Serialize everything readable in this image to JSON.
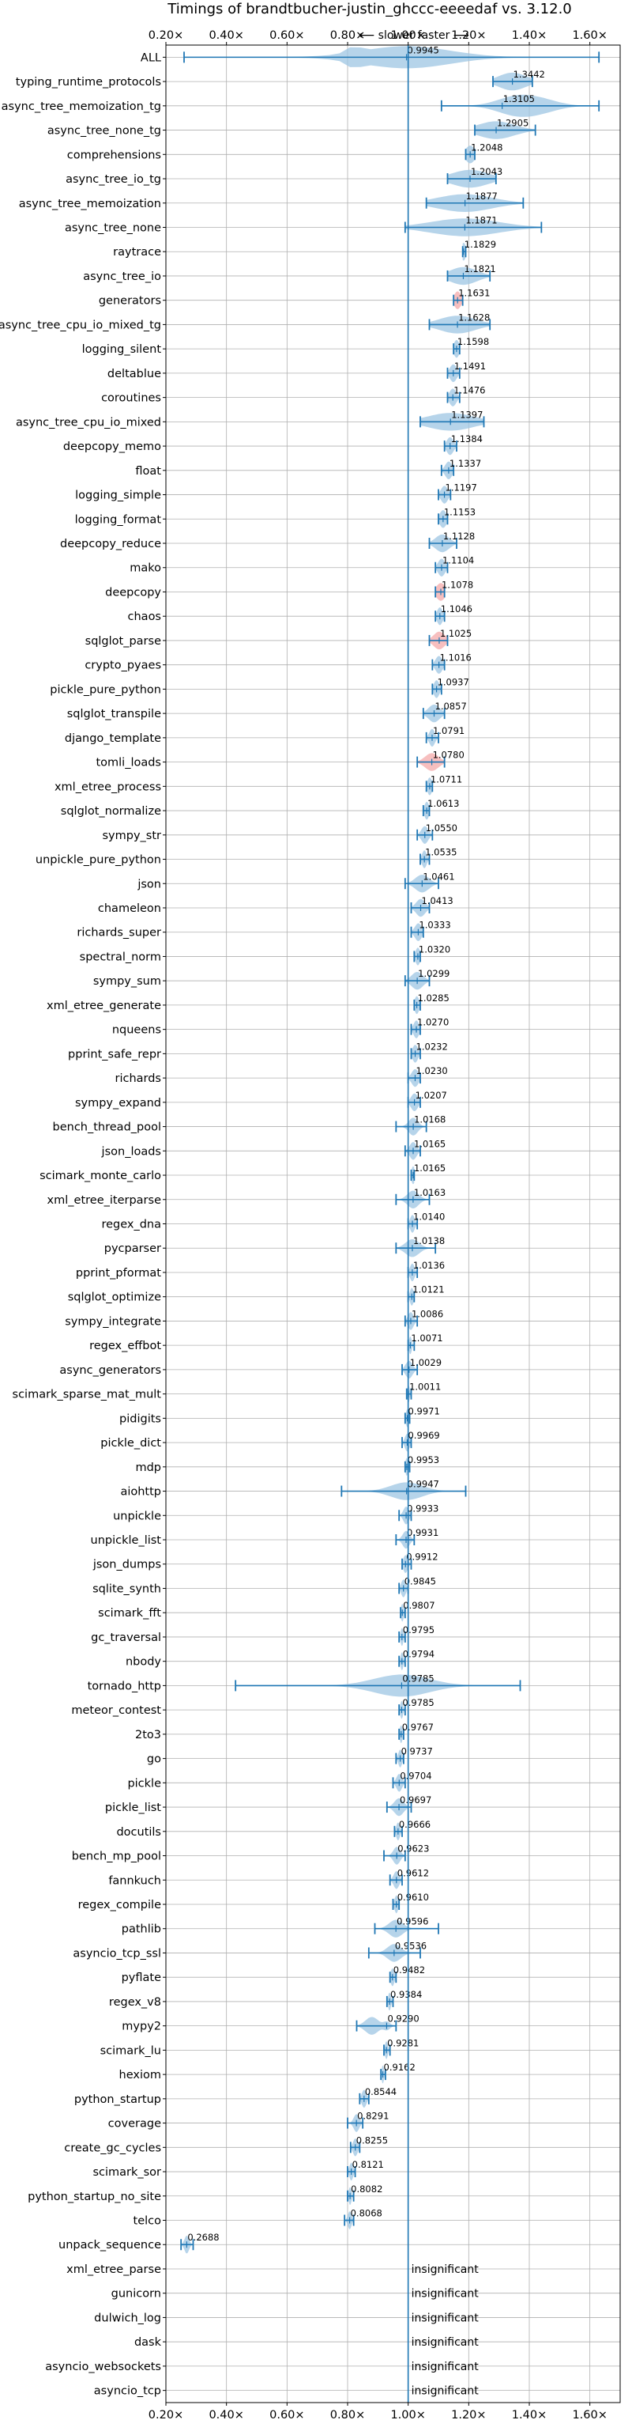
{
  "chart_data": {
    "type": "violin",
    "title": "Timings of brandtbucher-justin_ghccc-eeeedaf vs. 3.12.0",
    "subtitle": "⟵ slower   faster ⟶",
    "xlim": [
      0.2,
      1.7
    ],
    "xticks": [
      "0.20×",
      "0.40×",
      "0.60×",
      "0.80×",
      "1.00×",
      "1.20×",
      "1.40×",
      "1.60×"
    ],
    "xtick_values": [
      0.2,
      0.4,
      0.6,
      0.8,
      1.0,
      1.2,
      1.4,
      1.6
    ],
    "reference_line": 1.0,
    "insignificant_label": "insignificant",
    "colors": {
      "violin": "#9ec5e3",
      "violin_highlight": "#f4a9a9",
      "line": "#1f77b4",
      "grid": "#b0b0b0"
    },
    "benchmarks": [
      {
        "name": "ALL",
        "label": "0.9945",
        "center": 0.9945,
        "min": 0.26,
        "max": 1.63,
        "spread": 0.22,
        "shape": "all"
      },
      {
        "name": "typing_runtime_protocols",
        "label": "1.3442",
        "center": 1.3442,
        "min": 1.28,
        "max": 1.41,
        "spread": 0.06
      },
      {
        "name": "async_tree_memoization_tg",
        "label": "1.3105",
        "center": 1.3105,
        "min": 1.11,
        "max": 1.63,
        "spread": 0.2,
        "shape": "skew"
      },
      {
        "name": "async_tree_none_tg",
        "label": "1.2905",
        "center": 1.2905,
        "min": 1.22,
        "max": 1.42,
        "spread": 0.08
      },
      {
        "name": "comprehensions",
        "label": "1.2048",
        "center": 1.2048,
        "min": 1.19,
        "max": 1.22,
        "spread": 0.02
      },
      {
        "name": "async_tree_io_tg",
        "label": "1.2043",
        "center": 1.2043,
        "min": 1.13,
        "max": 1.29,
        "spread": 0.08
      },
      {
        "name": "async_tree_memoization",
        "label": "1.1877",
        "center": 1.1877,
        "min": 1.06,
        "max": 1.38,
        "spread": 0.12
      },
      {
        "name": "async_tree_none",
        "label": "1.1871",
        "center": 1.1871,
        "min": 0.99,
        "max": 1.44,
        "spread": 0.15
      },
      {
        "name": "raytrace",
        "label": "1.1829",
        "center": 1.1829,
        "min": 1.18,
        "max": 1.19,
        "spread": 0.01
      },
      {
        "name": "async_tree_io",
        "label": "1.1821",
        "center": 1.1821,
        "min": 1.13,
        "max": 1.27,
        "spread": 0.06
      },
      {
        "name": "generators",
        "label": "1.1631",
        "center": 1.1631,
        "min": 1.15,
        "max": 1.18,
        "spread": 0.015,
        "highlight": true
      },
      {
        "name": "async_tree_cpu_io_mixed_tg",
        "label": "1.1628",
        "center": 1.1628,
        "min": 1.07,
        "max": 1.27,
        "spread": 0.08
      },
      {
        "name": "logging_silent",
        "label": "1.1598",
        "center": 1.1598,
        "min": 1.15,
        "max": 1.17,
        "spread": 0.012
      },
      {
        "name": "deltablue",
        "label": "1.1491",
        "center": 1.1491,
        "min": 1.13,
        "max": 1.17,
        "spread": 0.015
      },
      {
        "name": "coroutines",
        "label": "1.1476",
        "center": 1.1476,
        "min": 1.13,
        "max": 1.17,
        "spread": 0.015
      },
      {
        "name": "async_tree_cpu_io_mixed",
        "label": "1.1397",
        "center": 1.1397,
        "min": 1.04,
        "max": 1.25,
        "spread": 0.1
      },
      {
        "name": "deepcopy_memo",
        "label": "1.1384",
        "center": 1.1384,
        "min": 1.12,
        "max": 1.16,
        "spread": 0.015
      },
      {
        "name": "float",
        "label": "1.1337",
        "center": 1.1337,
        "min": 1.11,
        "max": 1.15,
        "spread": 0.015
      },
      {
        "name": "logging_simple",
        "label": "1.1197",
        "center": 1.1197,
        "min": 1.1,
        "max": 1.14,
        "spread": 0.015
      },
      {
        "name": "logging_format",
        "label": "1.1153",
        "center": 1.1153,
        "min": 1.1,
        "max": 1.13,
        "spread": 0.015
      },
      {
        "name": "deepcopy_reduce",
        "label": "1.1128",
        "center": 1.1128,
        "min": 1.07,
        "max": 1.16,
        "spread": 0.03
      },
      {
        "name": "mako",
        "label": "1.1104",
        "center": 1.1104,
        "min": 1.09,
        "max": 1.13,
        "spread": 0.015
      },
      {
        "name": "deepcopy",
        "label": "1.1078",
        "center": 1.1078,
        "min": 1.09,
        "max": 1.12,
        "spread": 0.02,
        "highlight": true
      },
      {
        "name": "chaos",
        "label": "1.1046",
        "center": 1.1046,
        "min": 1.09,
        "max": 1.12,
        "spread": 0.012
      },
      {
        "name": "sqlglot_parse",
        "label": "1.1025",
        "center": 1.1025,
        "min": 1.07,
        "max": 1.13,
        "spread": 0.025,
        "highlight": true
      },
      {
        "name": "crypto_pyaes",
        "label": "1.1016",
        "center": 1.1016,
        "min": 1.08,
        "max": 1.12,
        "spread": 0.015
      },
      {
        "name": "pickle_pure_python",
        "label": "1.0937",
        "center": 1.0937,
        "min": 1.08,
        "max": 1.11,
        "spread": 0.012
      },
      {
        "name": "sqlglot_transpile",
        "label": "1.0857",
        "center": 1.0857,
        "min": 1.05,
        "max": 1.12,
        "spread": 0.025
      },
      {
        "name": "django_template",
        "label": "1.0791",
        "center": 1.0791,
        "min": 1.06,
        "max": 1.1,
        "spread": 0.012
      },
      {
        "name": "tomli_loads",
        "label": "1.0780",
        "center": 1.078,
        "min": 1.03,
        "max": 1.12,
        "spread": 0.03,
        "highlight": true
      },
      {
        "name": "xml_etree_process",
        "label": "1.0711",
        "center": 1.0711,
        "min": 1.06,
        "max": 1.08,
        "spread": 0.01
      },
      {
        "name": "sqlglot_normalize",
        "label": "1.0613",
        "center": 1.0613,
        "min": 1.05,
        "max": 1.07,
        "spread": 0.01
      },
      {
        "name": "sympy_str",
        "label": "1.0550",
        "center": 1.055,
        "min": 1.03,
        "max": 1.08,
        "spread": 0.015
      },
      {
        "name": "unpickle_pure_python",
        "label": "1.0535",
        "center": 1.0535,
        "min": 1.04,
        "max": 1.07,
        "spread": 0.01
      },
      {
        "name": "json",
        "label": "1.0461",
        "center": 1.0461,
        "min": 0.99,
        "max": 1.1,
        "spread": 0.03
      },
      {
        "name": "chameleon",
        "label": "1.0413",
        "center": 1.0413,
        "min": 1.01,
        "max": 1.07,
        "spread": 0.02
      },
      {
        "name": "richards_super",
        "label": "1.0333",
        "center": 1.0333,
        "min": 1.01,
        "max": 1.05,
        "spread": 0.015
      },
      {
        "name": "spectral_norm",
        "label": "1.0320",
        "center": 1.032,
        "min": 1.02,
        "max": 1.04,
        "spread": 0.01
      },
      {
        "name": "sympy_sum",
        "label": "1.0299",
        "center": 1.0299,
        "min": 0.99,
        "max": 1.07,
        "spread": 0.025
      },
      {
        "name": "xml_etree_generate",
        "label": "1.0285",
        "center": 1.0285,
        "min": 1.02,
        "max": 1.04,
        "spread": 0.01
      },
      {
        "name": "nqueens",
        "label": "1.0270",
        "center": 1.027,
        "min": 1.01,
        "max": 1.04,
        "spread": 0.012
      },
      {
        "name": "pprint_safe_repr",
        "label": "1.0232",
        "center": 1.0232,
        "min": 1.01,
        "max": 1.04,
        "spread": 0.012
      },
      {
        "name": "richards",
        "label": "1.0230",
        "center": 1.023,
        "min": 1.0,
        "max": 1.04,
        "spread": 0.015
      },
      {
        "name": "sympy_expand",
        "label": "1.0207",
        "center": 1.0207,
        "min": 1.0,
        "max": 1.04,
        "spread": 0.015
      },
      {
        "name": "bench_thread_pool",
        "label": "1.0168",
        "center": 1.0168,
        "min": 0.96,
        "max": 1.06,
        "spread": 0.02
      },
      {
        "name": "json_loads",
        "label": "1.0165",
        "center": 1.0165,
        "min": 0.99,
        "max": 1.04,
        "spread": 0.015
      },
      {
        "name": "scimark_monte_carlo",
        "label": "1.0165",
        "center": 1.0165,
        "min": 1.01,
        "max": 1.02,
        "spread": 0.008
      },
      {
        "name": "xml_etree_iterparse",
        "label": "1.0163",
        "center": 1.0163,
        "min": 0.96,
        "max": 1.07,
        "spread": 0.025
      },
      {
        "name": "regex_dna",
        "label": "1.0140",
        "center": 1.014,
        "min": 1.0,
        "max": 1.03,
        "spread": 0.01
      },
      {
        "name": "pycparser",
        "label": "1.0138",
        "center": 1.0138,
        "min": 0.96,
        "max": 1.09,
        "spread": 0.03
      },
      {
        "name": "pprint_pformat",
        "label": "1.0136",
        "center": 1.0136,
        "min": 1.0,
        "max": 1.03,
        "spread": 0.01
      },
      {
        "name": "sqlglot_optimize",
        "label": "1.0121",
        "center": 1.0121,
        "min": 1.0,
        "max": 1.02,
        "spread": 0.008
      },
      {
        "name": "sympy_integrate",
        "label": "1.0086",
        "center": 1.0086,
        "min": 0.99,
        "max": 1.03,
        "spread": 0.012
      },
      {
        "name": "regex_effbot",
        "label": "1.0071",
        "center": 1.0071,
        "min": 1.0,
        "max": 1.02,
        "spread": 0.006
      },
      {
        "name": "async_generators",
        "label": "1.0029",
        "center": 1.0029,
        "min": 0.98,
        "max": 1.03,
        "spread": 0.015
      },
      {
        "name": "scimark_sparse_mat_mult",
        "label": "1.0011",
        "center": 1.0011,
        "min": 0.995,
        "max": 1.01,
        "spread": 0.005
      },
      {
        "name": "pidigits",
        "label": "0.9971",
        "center": 0.9971,
        "min": 0.99,
        "max": 1.005,
        "spread": 0.006
      },
      {
        "name": "pickle_dict",
        "label": "0.9969",
        "center": 0.9969,
        "min": 0.98,
        "max": 1.01,
        "spread": 0.01
      },
      {
        "name": "mdp",
        "label": "0.9953",
        "center": 0.9953,
        "min": 0.99,
        "max": 1.005,
        "spread": 0.006
      },
      {
        "name": "aiohttp",
        "label": "0.9947",
        "center": 0.9947,
        "min": 0.78,
        "max": 1.19,
        "spread": 0.07
      },
      {
        "name": "unpickle",
        "label": "0.9933",
        "center": 0.9933,
        "min": 0.97,
        "max": 1.01,
        "spread": 0.012
      },
      {
        "name": "unpickle_list",
        "label": "0.9931",
        "center": 0.9931,
        "min": 0.96,
        "max": 1.02,
        "spread": 0.015
      },
      {
        "name": "json_dumps",
        "label": "0.9912",
        "center": 0.9912,
        "min": 0.98,
        "max": 1.01,
        "spread": 0.01
      },
      {
        "name": "sqlite_synth",
        "label": "0.9845",
        "center": 0.9845,
        "min": 0.97,
        "max": 1.0,
        "spread": 0.01
      },
      {
        "name": "scimark_fft",
        "label": "0.9807",
        "center": 0.9807,
        "min": 0.975,
        "max": 0.99,
        "spread": 0.006
      },
      {
        "name": "gc_traversal",
        "label": "0.9795",
        "center": 0.9795,
        "min": 0.97,
        "max": 0.99,
        "spread": 0.006
      },
      {
        "name": "nbody",
        "label": "0.9794",
        "center": 0.9794,
        "min": 0.97,
        "max": 0.99,
        "spread": 0.006
      },
      {
        "name": "tornado_http",
        "label": "0.9785",
        "center": 0.9785,
        "min": 0.43,
        "max": 1.37,
        "spread": 0.1,
        "shape": "wide"
      },
      {
        "name": "meteor_contest",
        "label": "0.9785",
        "center": 0.9785,
        "min": 0.97,
        "max": 0.99,
        "spread": 0.006
      },
      {
        "name": "2to3",
        "label": "0.9767",
        "center": 0.9767,
        "min": 0.97,
        "max": 0.985,
        "spread": 0.006
      },
      {
        "name": "go",
        "label": "0.9737",
        "center": 0.9737,
        "min": 0.96,
        "max": 0.985,
        "spread": 0.008
      },
      {
        "name": "pickle",
        "label": "0.9704",
        "center": 0.9704,
        "min": 0.95,
        "max": 0.99,
        "spread": 0.012
      },
      {
        "name": "pickle_list",
        "label": "0.9697",
        "center": 0.9697,
        "min": 0.93,
        "max": 1.01,
        "spread": 0.02
      },
      {
        "name": "docutils",
        "label": "0.9666",
        "center": 0.9666,
        "min": 0.955,
        "max": 0.98,
        "spread": 0.008
      },
      {
        "name": "bench_mp_pool",
        "label": "0.9623",
        "center": 0.9623,
        "min": 0.92,
        "max": 0.99,
        "spread": 0.015
      },
      {
        "name": "fannkuch",
        "label": "0.9612",
        "center": 0.9612,
        "min": 0.94,
        "max": 0.98,
        "spread": 0.012
      },
      {
        "name": "regex_compile",
        "label": "0.9610",
        "center": 0.961,
        "min": 0.95,
        "max": 0.97,
        "spread": 0.008
      },
      {
        "name": "pathlib",
        "label": "0.9596",
        "center": 0.9596,
        "min": 0.89,
        "max": 1.1,
        "spread": 0.03
      },
      {
        "name": "asyncio_tcp_ssl",
        "label": "0.9536",
        "center": 0.9536,
        "min": 0.87,
        "max": 1.04,
        "spread": 0.03
      },
      {
        "name": "pyflate",
        "label": "0.9482",
        "center": 0.9482,
        "min": 0.94,
        "max": 0.96,
        "spread": 0.008
      },
      {
        "name": "regex_v8",
        "label": "0.9384",
        "center": 0.9384,
        "min": 0.93,
        "max": 0.95,
        "spread": 0.006
      },
      {
        "name": "mypy2",
        "label": "0.9290",
        "center": 0.929,
        "min": 0.83,
        "max": 0.96,
        "spread": 0.045,
        "shape": "skew-left"
      },
      {
        "name": "scimark_lu",
        "label": "0.9281",
        "center": 0.9281,
        "min": 0.92,
        "max": 0.94,
        "spread": 0.006
      },
      {
        "name": "hexiom",
        "label": "0.9162",
        "center": 0.9162,
        "min": 0.91,
        "max": 0.925,
        "spread": 0.005
      },
      {
        "name": "python_startup",
        "label": "0.8544",
        "center": 0.8544,
        "min": 0.84,
        "max": 0.87,
        "spread": 0.01
      },
      {
        "name": "coverage",
        "label": "0.8291",
        "center": 0.8291,
        "min": 0.8,
        "max": 0.85,
        "spread": 0.012
      },
      {
        "name": "create_gc_cycles",
        "label": "0.8255",
        "center": 0.8255,
        "min": 0.81,
        "max": 0.84,
        "spread": 0.01
      },
      {
        "name": "scimark_sor",
        "label": "0.8121",
        "center": 0.8121,
        "min": 0.8,
        "max": 0.825,
        "spread": 0.008
      },
      {
        "name": "python_startup_no_site",
        "label": "0.8082",
        "center": 0.8082,
        "min": 0.8,
        "max": 0.82,
        "spread": 0.006
      },
      {
        "name": "telco",
        "label": "0.8068",
        "center": 0.8068,
        "min": 0.79,
        "max": 0.82,
        "spread": 0.008
      },
      {
        "name": "unpack_sequence",
        "label": "0.2688",
        "center": 0.2688,
        "min": 0.25,
        "max": 0.29,
        "spread": 0.01
      },
      {
        "name": "xml_etree_parse",
        "insignificant": true
      },
      {
        "name": "gunicorn",
        "insignificant": true
      },
      {
        "name": "dulwich_log",
        "insignificant": true
      },
      {
        "name": "dask",
        "insignificant": true
      },
      {
        "name": "asyncio_websockets",
        "insignificant": true
      },
      {
        "name": "asyncio_tcp",
        "insignificant": true
      }
    ]
  }
}
